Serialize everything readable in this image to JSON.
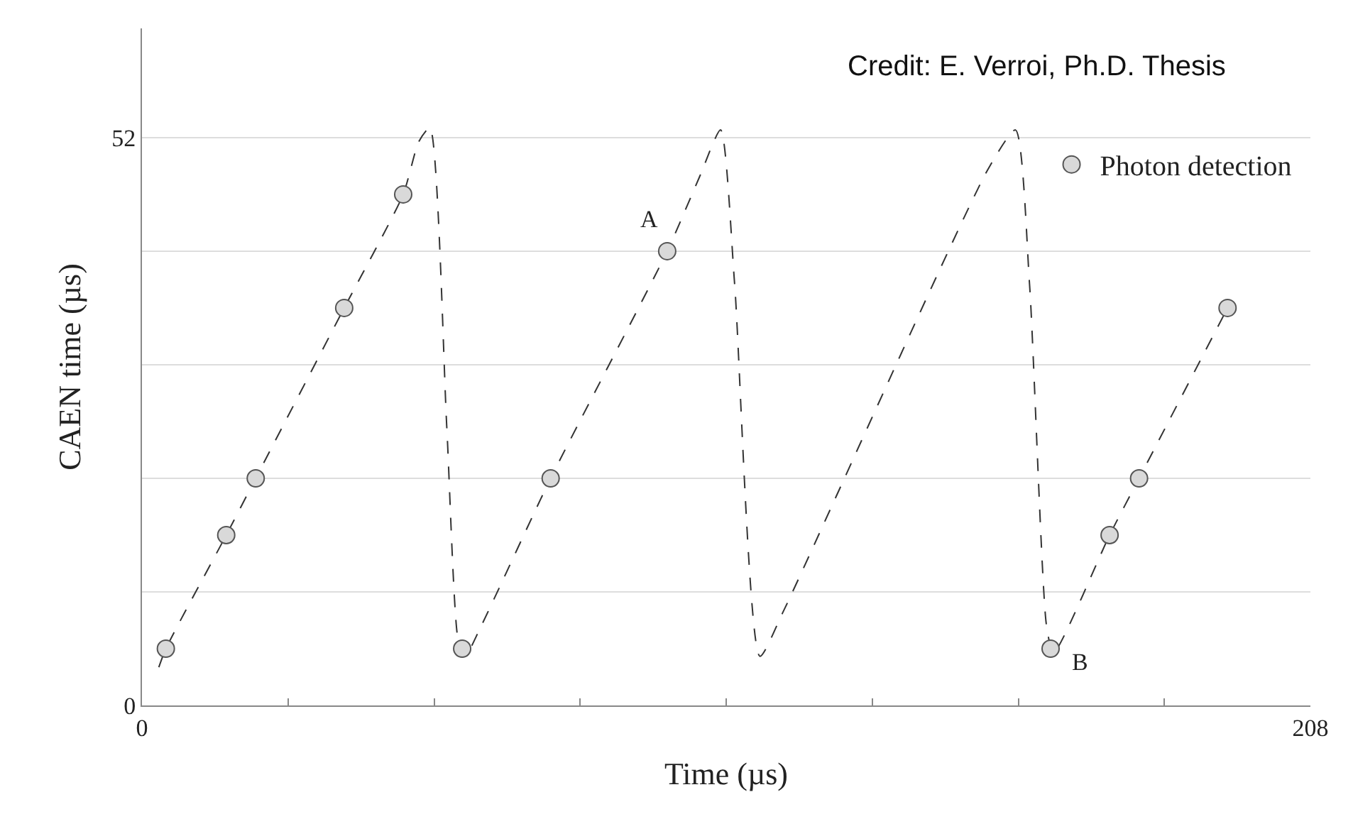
{
  "chart_data": {
    "type": "scatter",
    "xlabel": "Time (µs)",
    "ylabel": "CAEN time (µs)",
    "xlim": [
      0,
      208
    ],
    "ylim": [
      0,
      62
    ],
    "xticks": [
      0,
      {
        "value": 26,
        "label": null
      },
      {
        "value": 52,
        "label": null
      },
      {
        "value": 78,
        "label": null
      },
      {
        "value": 104,
        "label": null
      },
      {
        "value": 130,
        "label": null
      },
      {
        "value": 156,
        "label": null
      },
      {
        "value": 182,
        "label": null
      },
      208
    ],
    "yticks": [
      0,
      {
        "value": 10.4,
        "label": null
      },
      {
        "value": 20.8,
        "label": null
      },
      {
        "value": 31.2,
        "label": null
      },
      {
        "value": 41.6,
        "label": null
      },
      52
    ],
    "grid": "y",
    "legend": "top right",
    "tick_labels": "xy",
    "series": [
      {
        "type": "line",
        "color": "#333333",
        "line_style": "dashed",
        "marker": "none",
        "x": [
          3,
          4.25,
          15,
          20.25,
          36,
          46.5,
          49.25,
          51.25,
          54.25,
          56.25,
          57.5,
          60.5,
          72.75,
          93.5,
          99.25,
          103,
          105.5,
          110,
          114.25,
          150.5,
          155.5,
          158,
          161,
          162.25,
          172.25,
          177.5,
          193.25
        ],
        "values": [
          3.5,
          5.2,
          15.6,
          20.8,
          36.4,
          46.8,
          51.6,
          52.9,
          25.6,
          6.1,
          4.5,
          7.4,
          20.8,
          41.6,
          48.4,
          52.7,
          38.6,
          4.5,
          8.7,
          49,
          52.7,
          38.6,
          7.4,
          4.8,
          15.6,
          20.8,
          36.4
        ]
      },
      {
        "name": "Photon detection",
        "color": "#d9d9d9",
        "marker": "circle",
        "x": [
          4.25,
          15,
          20.25,
          36,
          46.5,
          57,
          72.75,
          93.5,
          161.75,
          172.25,
          177.5,
          193.25
        ],
        "values": [
          5.2,
          15.6,
          20.8,
          36.4,
          46.8,
          5.2,
          20.8,
          41.6,
          5.2,
          15.6,
          20.8,
          36.4
        ]
      }
    ],
    "annotations": [
      "Credit: E. Verroi, Ph.D. Thesis",
      {
        "text": "A",
        "x": 93.5,
        "y": 41.6
      },
      {
        "text": "B",
        "x": 161.75,
        "y": 5.2
      }
    ]
  }
}
